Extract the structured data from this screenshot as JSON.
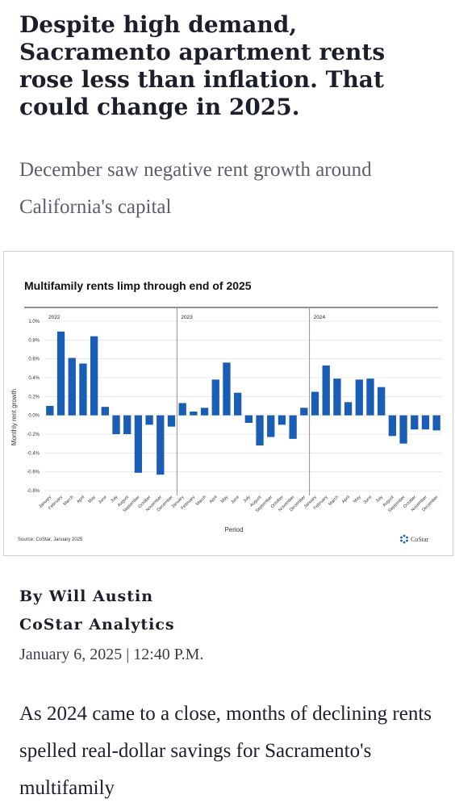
{
  "article": {
    "headline": "Despite high demand, Sacramento apartment rents rose less than inflation. That could change in 2025.",
    "subheadline": "December saw negative rent growth around California's capital",
    "byline_author": "By Will Austin",
    "byline_org": "CoStar Analytics",
    "dateline": "January 6, 2025 | 12:40 P.M.",
    "body": "As 2024 came to a close, months of declining rents spelled real-dollar savings for Sacramento's multifamily"
  },
  "chart_data": {
    "type": "bar",
    "title": "Multifamily rents limp through end of 2025",
    "xlabel": "Period",
    "ylabel": "Monthly rent growth",
    "source": "Source: CoStar, January 2025",
    "brand": "CoStar",
    "bar_color": "#1a5db5",
    "ylim": [
      -0.8,
      1.0
    ],
    "y_ticks": [
      "1.0%",
      "0.8%",
      "0.6%",
      "0.4%",
      "0.2%",
      "0.0%",
      "-0.2%",
      "-0.4%",
      "-0.6%",
      "-0.8%"
    ],
    "y_tick_values": [
      1.0,
      0.8,
      0.6,
      0.4,
      0.2,
      0.0,
      -0.2,
      -0.4,
      -0.6,
      -0.8
    ],
    "grid": true,
    "groups": [
      "2022",
      "2023",
      "2024"
    ],
    "categories": [
      "January",
      "February",
      "March",
      "April",
      "May",
      "June",
      "July",
      "August",
      "September",
      "October",
      "November",
      "December"
    ],
    "series": [
      {
        "values": [
          0.1,
          0.89,
          0.61,
          0.55,
          0.84,
          0.09,
          -0.2,
          -0.2,
          -0.61,
          -0.1,
          -0.63,
          -0.12
        ]
      },
      {
        "values": [
          0.13,
          0.04,
          0.08,
          0.38,
          0.56,
          0.24,
          -0.08,
          -0.32,
          -0.23,
          -0.1,
          -0.25,
          0.08
        ]
      },
      {
        "values": [
          0.25,
          0.53,
          0.39,
          0.14,
          0.38,
          0.39,
          0.3,
          -0.22,
          -0.3,
          -0.15,
          -0.15,
          -0.16
        ]
      }
    ]
  }
}
